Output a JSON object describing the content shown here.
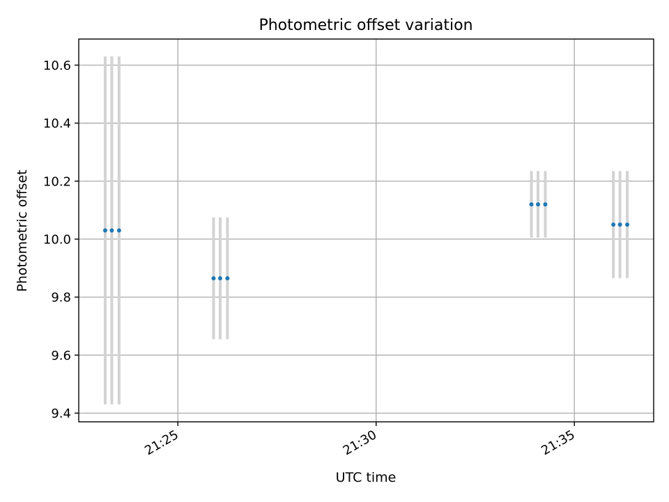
{
  "chart_data": {
    "type": "scatter",
    "title": "Photometric offset variation",
    "xlabel": "UTC time",
    "ylabel": "Photometric offset",
    "grid": true,
    "x_axis": {
      "type": "time",
      "range": [
        "21:22:30",
        "21:37:00"
      ],
      "ticks": [
        {
          "value": "21:25:00",
          "label": "21:25"
        },
        {
          "value": "21:30:00",
          "label": "21:30"
        },
        {
          "value": "21:35:00",
          "label": "21:35"
        }
      ]
    },
    "y_axis": {
      "range": [
        9.37,
        10.69
      ],
      "ticks": [
        {
          "value": 9.4,
          "label": "9.4"
        },
        {
          "value": 9.6,
          "label": "9.6"
        },
        {
          "value": 9.8,
          "label": "9.8"
        },
        {
          "value": 10.0,
          "label": "10.0"
        },
        {
          "value": 10.2,
          "label": "10.2"
        },
        {
          "value": 10.4,
          "label": "10.4"
        },
        {
          "value": 10.6,
          "label": "10.6"
        }
      ]
    },
    "points": [
      {
        "time": "21:23:10",
        "y": 10.03,
        "y_low": 9.43,
        "y_high": 10.63
      },
      {
        "time": "21:23:20",
        "y": 10.03,
        "y_low": 9.43,
        "y_high": 10.63
      },
      {
        "time": "21:23:31",
        "y": 10.03,
        "y_low": 9.43,
        "y_high": 10.63
      },
      {
        "time": "21:25:54",
        "y": 9.865,
        "y_low": 9.655,
        "y_high": 10.075
      },
      {
        "time": "21:26:04",
        "y": 9.865,
        "y_low": 9.655,
        "y_high": 10.075
      },
      {
        "time": "21:26:15",
        "y": 9.865,
        "y_low": 9.655,
        "y_high": 10.075
      },
      {
        "time": "21:33:55",
        "y": 10.12,
        "y_low": 10.005,
        "y_high": 10.235
      },
      {
        "time": "21:34:05",
        "y": 10.12,
        "y_low": 10.005,
        "y_high": 10.235
      },
      {
        "time": "21:34:16",
        "y": 10.12,
        "y_low": 10.005,
        "y_high": 10.235
      },
      {
        "time": "21:35:59",
        "y": 10.05,
        "y_low": 9.865,
        "y_high": 10.235
      },
      {
        "time": "21:36:09",
        "y": 10.05,
        "y_low": 9.865,
        "y_high": 10.235
      },
      {
        "time": "21:36:20",
        "y": 10.05,
        "y_low": 9.865,
        "y_high": 10.235
      }
    ],
    "colors": {
      "point": "#1f77b4",
      "errorbar": "#d3d3d3",
      "grid": "#b0b0b0"
    }
  }
}
